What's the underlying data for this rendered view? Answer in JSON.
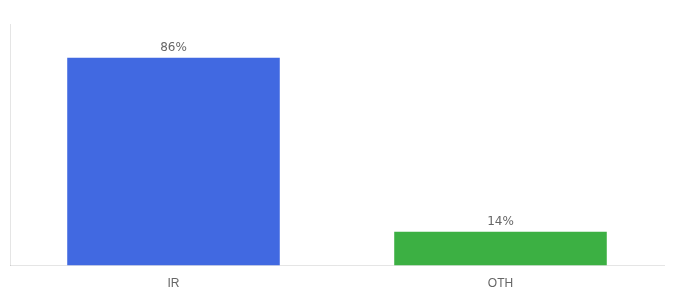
{
  "chart_data": {
    "type": "bar",
    "categories": [
      "IR",
      "OTH"
    ],
    "values": [
      86,
      14
    ],
    "value_labels": [
      "86%",
      "14%"
    ],
    "colors": [
      "#4169e1",
      "#3cb043"
    ],
    "ylim": [
      0,
      100
    ],
    "data_labels": true,
    "tick_labels": "x",
    "grid": false
  }
}
